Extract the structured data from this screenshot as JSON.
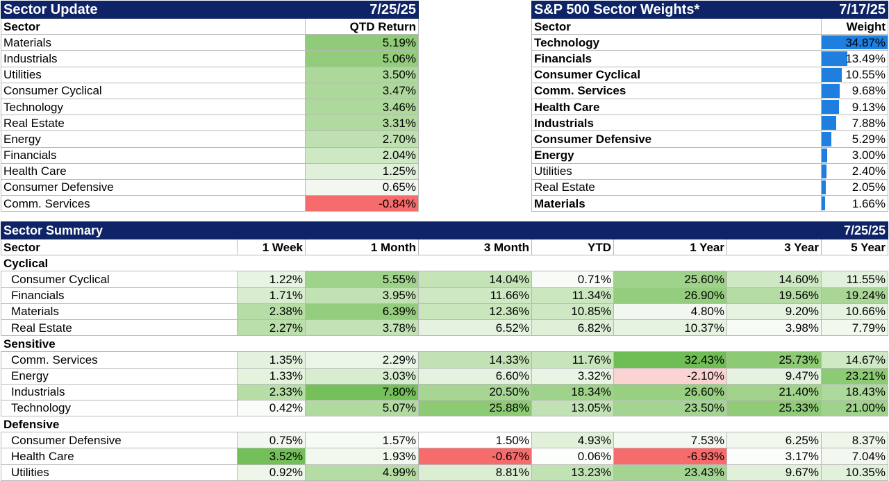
{
  "sector_update": {
    "title": "Sector Update",
    "date": "7/25/25",
    "headers": [
      "Sector",
      "QTD Return"
    ],
    "rows": [
      {
        "sector": "Materials",
        "ret": "5.19%",
        "bg": "#8fcb78"
      },
      {
        "sector": "Industrials",
        "ret": "5.06%",
        "bg": "#93cd7c"
      },
      {
        "sector": "Utilities",
        "ret": "3.50%",
        "bg": "#acd89a"
      },
      {
        "sector": "Consumer Cyclical",
        "ret": "3.47%",
        "bg": "#add89b"
      },
      {
        "sector": "Technology",
        "ret": "3.46%",
        "bg": "#aed99c"
      },
      {
        "sector": "Real Estate",
        "ret": "3.31%",
        "bg": "#b1daa0"
      },
      {
        "sector": "Energy",
        "ret": "2.70%",
        "bg": "#bfe1b1"
      },
      {
        "sector": "Financials",
        "ret": "2.04%",
        "bg": "#cde8c2"
      },
      {
        "sector": "Health Care",
        "ret": "1.25%",
        "bg": "#e1f0da"
      },
      {
        "sector": "Consumer Defensive",
        "ret": "0.65%",
        "bg": "#f2f8ef"
      },
      {
        "sector": "Comm. Services",
        "ret": "-0.84%",
        "bg": "#f66b6b"
      }
    ]
  },
  "weights": {
    "title": "S&P 500 Sector Weights*",
    "date": "7/17/25",
    "headers": [
      "Sector",
      "Weight"
    ],
    "bar_color": "#1e7fe0",
    "rows": [
      {
        "sector": "Technology",
        "weight": "34.87%",
        "value": 34.87,
        "bold": true
      },
      {
        "sector": "Financials",
        "weight": "13.49%",
        "value": 13.49,
        "bold": true
      },
      {
        "sector": "Consumer Cyclical",
        "weight": "10.55%",
        "value": 10.55,
        "bold": true
      },
      {
        "sector": "Comm. Services",
        "weight": "9.68%",
        "value": 9.68,
        "bold": true
      },
      {
        "sector": "Health Care",
        "weight": "9.13%",
        "value": 9.13,
        "bold": true
      },
      {
        "sector": "Industrials",
        "weight": "7.88%",
        "value": 7.88,
        "bold": true
      },
      {
        "sector": "Consumer Defensive",
        "weight": "5.29%",
        "value": 5.29,
        "bold": true
      },
      {
        "sector": "Energy",
        "weight": "3.00%",
        "value": 3.0,
        "bold": true
      },
      {
        "sector": "Utilities",
        "weight": "2.40%",
        "value": 2.4,
        "bold": false
      },
      {
        "sector": "Real Estate",
        "weight": "2.05%",
        "value": 2.05,
        "bold": false
      },
      {
        "sector": "Materials",
        "weight": "1.66%",
        "value": 1.66,
        "bold": true
      }
    ]
  },
  "summary": {
    "title": "Sector Summary",
    "date": "7/25/25",
    "headers": [
      "Sector",
      "1 Week",
      "1 Month",
      "3 Month",
      "YTD",
      "1 Year",
      "3 Year",
      "5 Year"
    ],
    "groups": [
      {
        "name": "Cyclical",
        "rows": [
          {
            "sector": "Consumer Cyclical",
            "vals": [
              "1.22%",
              "5.55%",
              "14.04%",
              "0.71%",
              "25.60%",
              "14.60%",
              "11.55%"
            ],
            "bgs": [
              "#e8f4e3",
              "#9fd28a",
              "#c4e3b7",
              "#f8fbf6",
              "#9fd28a",
              "#cde8c2",
              "#e2f1dc"
            ]
          },
          {
            "sector": "Financials",
            "vals": [
              "1.71%",
              "3.95%",
              "11.66%",
              "11.34%",
              "26.90%",
              "19.56%",
              "19.24%"
            ],
            "bgs": [
              "#d8ecd0",
              "#c1e2b3",
              "#cde8c2",
              "#cbe7c0",
              "#94cd7d",
              "#b5dca4",
              "#a9d697"
            ]
          },
          {
            "sector": "Materials",
            "vals": [
              "2.38%",
              "6.39%",
              "12.36%",
              "10.85%",
              "4.80%",
              "9.20%",
              "10.66%"
            ],
            "bgs": [
              "#b6dda6",
              "#94cd7d",
              "#c9e6bd",
              "#cde8c2",
              "#f2f8ef",
              "#e6f3e1",
              "#e6f3e1"
            ]
          },
          {
            "sector": "Real Estate",
            "vals": [
              "2.27%",
              "3.78%",
              "6.52%",
              "6.82%",
              "10.37%",
              "3.98%",
              "7.79%"
            ],
            "bgs": [
              "#badfab",
              "#c3e3b6",
              "#e4f2df",
              "#dfefd8",
              "#e6f3e1",
              "#f7fbf5",
              "#f1f8ee"
            ]
          }
        ]
      },
      {
        "name": "Sensitive",
        "rows": [
          {
            "sector": "Comm. Services",
            "vals": [
              "1.35%",
              "2.29%",
              "14.33%",
              "11.76%",
              "32.43%",
              "25.73%",
              "14.67%"
            ],
            "bgs": [
              "#e3f1dd",
              "#ebf5e7",
              "#c2e2b5",
              "#c7e5bb",
              "#6fbd55",
              "#8ccb74",
              "#d0e9c5"
            ]
          },
          {
            "sector": "Energy",
            "vals": [
              "1.33%",
              "3.03%",
              "6.60%",
              "3.32%",
              "-2.10%",
              "9.47%",
              "23.21%"
            ],
            "bgs": [
              "#e4f2de",
              "#d8ecd0",
              "#e4f2df",
              "#eaf4e5",
              "#fbd3d3",
              "#e4f2df",
              "#8ccb74"
            ]
          },
          {
            "sector": "Industrials",
            "vals": [
              "2.33%",
              "7.80%",
              "20.50%",
              "18.34%",
              "26.60%",
              "21.40%",
              "18.43%"
            ],
            "bgs": [
              "#b8dea8",
              "#76c05c",
              "#a6d594",
              "#9fd28a",
              "#98cf81",
              "#a1d38d",
              "#aed99c"
            ]
          },
          {
            "sector": "Technology",
            "vals": [
              "0.42%",
              "5.07%",
              "25.88%",
              "13.05%",
              "23.50%",
              "25.33%",
              "21.00%"
            ],
            "bgs": [
              "#fafcf9",
              "#b1daa0",
              "#8ccb74",
              "#c2e2b5",
              "#a4d491",
              "#90cc78",
              "#9fd28a"
            ]
          }
        ]
      },
      {
        "name": "Defensive",
        "rows": [
          {
            "sector": "Consumer Defensive",
            "vals": [
              "0.75%",
              "1.57%",
              "1.50%",
              "4.93%",
              "7.53%",
              "6.25%",
              "8.37%"
            ],
            "bgs": [
              "#f2f8ef",
              "#f7fbf5",
              "#ffffff",
              "#e0f0d9",
              "#f3f9f0",
              "#f0f7ed",
              "#eef6ea"
            ]
          },
          {
            "sector": "Health Care",
            "vals": [
              "3.52%",
              "1.93%",
              "-0.67%",
              "0.06%",
              "-6.93%",
              "3.17%",
              "7.04%"
            ],
            "bgs": [
              "#73bf59",
              "#f1f8ee",
              "#f66b6b",
              "#fcfefb",
              "#f66b6b",
              "#fbfdfa",
              "#f2f8ef"
            ]
          },
          {
            "sector": "Utilities",
            "vals": [
              "0.92%",
              "4.99%",
              "8.81%",
              "13.23%",
              "23.43%",
              "9.67%",
              "10.35%"
            ],
            "bgs": [
              "#edf6e9",
              "#b5dca4",
              "#dbeed3",
              "#c1e2b3",
              "#a4d491",
              "#e1f0da",
              "#e2f1dc"
            ]
          }
        ]
      }
    ]
  }
}
